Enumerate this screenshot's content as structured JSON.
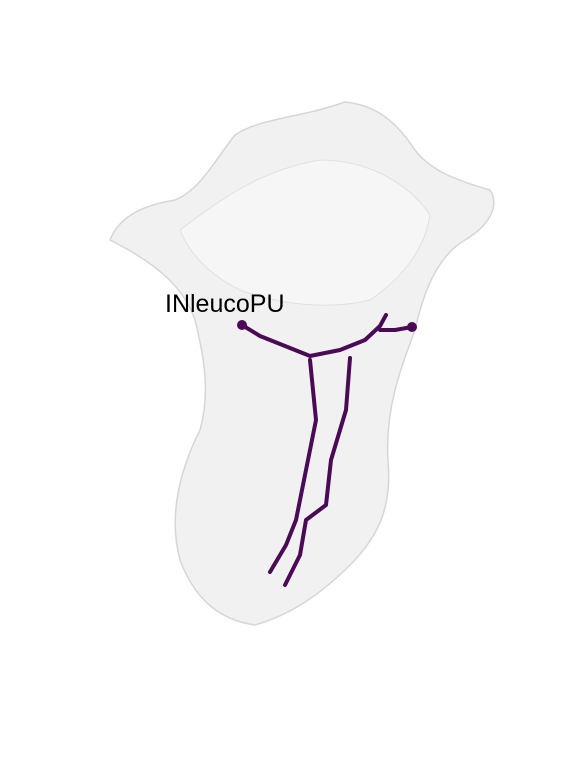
{
  "label": "INleucoPU"
}
